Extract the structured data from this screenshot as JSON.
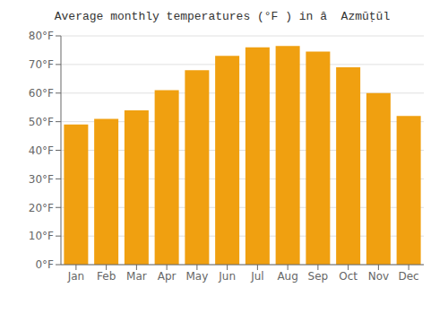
{
  "chart_data": {
    "type": "bar",
    "title": "Average monthly temperatures (°F ) in â  Azmūṭūl",
    "categories": [
      "Jan",
      "Feb",
      "Mar",
      "Apr",
      "May",
      "Jun",
      "Jul",
      "Aug",
      "Sep",
      "Oct",
      "Nov",
      "Dec"
    ],
    "values": [
      49,
      51,
      54,
      61,
      68,
      73,
      76,
      76.5,
      74.5,
      69,
      60,
      52
    ],
    "color": "#F0A010",
    "ylim": [
      0,
      80
    ],
    "yticks": [
      {
        "value": 0,
        "label": "0°F"
      },
      {
        "value": 10,
        "label": "10°F"
      },
      {
        "value": 20,
        "label": "20°F"
      },
      {
        "value": 30,
        "label": "30°F"
      },
      {
        "value": 40,
        "label": "40°F"
      },
      {
        "value": 50,
        "label": "50°F"
      },
      {
        "value": 60,
        "label": "60°F"
      },
      {
        "value": 70,
        "label": "70°F"
      },
      {
        "value": 80,
        "label": "80°F"
      }
    ],
    "grid": true
  }
}
